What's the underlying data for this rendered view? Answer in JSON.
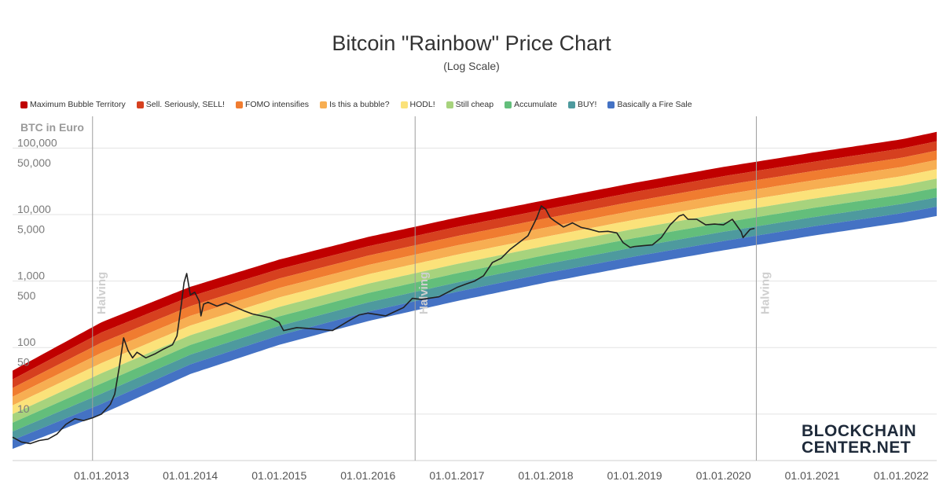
{
  "title": "Bitcoin \"Rainbow\" Price Chart",
  "subtitle": "(Log Scale)",
  "legend": [
    {
      "label": "Maximum Bubble Territory",
      "color": "#c00000"
    },
    {
      "label": "Sell. Seriously, SELL!",
      "color": "#d6401f"
    },
    {
      "label": "FOMO intensifies",
      "color": "#f07c30"
    },
    {
      "label": "Is this a bubble?",
      "color": "#f7ae52"
    },
    {
      "label": "HODL!",
      "color": "#fbe27a"
    },
    {
      "label": "Still cheap",
      "color": "#a7d37d"
    },
    {
      "label": "Accumulate",
      "color": "#63be7b"
    },
    {
      "label": "BUY!",
      "color": "#4e9a9e"
    },
    {
      "label": "Basically a Fire Sale",
      "color": "#4472c4"
    }
  ],
  "logo": {
    "line1": "BLOCKCHAIN",
    "line2": "CENTER.NET"
  },
  "chart_data": {
    "type": "area",
    "title": "Bitcoin \"Rainbow\" Price Chart",
    "subtitle": "(Log Scale)",
    "ylabel": "BTC in Euro",
    "xlabel": "",
    "yscale": "log",
    "ylim": [
      2,
      300000
    ],
    "xlim": [
      2012.0,
      2022.4
    ],
    "y_ticks": [
      {
        "label": "100,000",
        "value": 100000
      },
      {
        "label": "50,000",
        "value": 50000
      },
      {
        "label": "10,000",
        "value": 10000
      },
      {
        "label": "5,000",
        "value": 5000
      },
      {
        "label": "1,000",
        "value": 1000
      },
      {
        "label": "500",
        "value": 500
      },
      {
        "label": "100",
        "value": 100
      },
      {
        "label": "50",
        "value": 50
      },
      {
        "label": "10",
        "value": 10
      }
    ],
    "gridlines": [
      100000,
      10000,
      1000,
      100,
      10
    ],
    "x_ticks": [
      {
        "label": "01.01.2013",
        "value": 2013
      },
      {
        "label": "01.01.2014",
        "value": 2014
      },
      {
        "label": "01.01.2015",
        "value": 2015
      },
      {
        "label": "01.01.2016",
        "value": 2016
      },
      {
        "label": "01.01.2017",
        "value": 2017
      },
      {
        "label": "01.01.2018",
        "value": 2018
      },
      {
        "label": "01.01.2019",
        "value": 2019
      },
      {
        "label": "01.01.2020",
        "value": 2020
      },
      {
        "label": "01.01.2021",
        "value": 2021
      },
      {
        "label": "01.01.2022",
        "value": 2022
      }
    ],
    "halvings": [
      {
        "label": "Halving",
        "date": 2012.9
      },
      {
        "label": "Halving",
        "date": 2016.53
      },
      {
        "label": "Halving",
        "date": 2020.37
      }
    ],
    "bands": {
      "names": [
        "Maximum Bubble Territory",
        "Sell. Seriously, SELL!",
        "FOMO intensifies",
        "Is this a bubble?",
        "HODL!",
        "Still cheap",
        "Accumulate",
        "BUY!",
        "Basically a Fire Sale"
      ],
      "colors": [
        "#c00000",
        "#d6401f",
        "#f07c30",
        "#f7ae52",
        "#fbe27a",
        "#a7d37d",
        "#63be7b",
        "#4e9a9e",
        "#4472c4"
      ],
      "x": [
        2012.0,
        2013.0,
        2014.0,
        2015.0,
        2016.0,
        2017.0,
        2018.0,
        2019.0,
        2020.0,
        2021.0,
        2022.0,
        2022.4
      ],
      "upper": [
        45,
        240,
        820,
        2100,
        4600,
        9000,
        16500,
        30000,
        52000,
        85000,
        135000,
        175000
      ],
      "lower": [
        3,
        10,
        40,
        110,
        250,
        500,
        950,
        1700,
        2900,
        4800,
        7600,
        9500
      ]
    },
    "series": [
      {
        "name": "BTC price",
        "x": [
          2012.0,
          2012.1,
          2012.2,
          2012.3,
          2012.4,
          2012.5,
          2012.6,
          2012.7,
          2012.8,
          2012.9,
          2013.0,
          2013.1,
          2013.15,
          2013.2,
          2013.25,
          2013.3,
          2013.35,
          2013.4,
          2013.5,
          2013.6,
          2013.7,
          2013.8,
          2013.85,
          2013.9,
          2013.93,
          2013.96,
          2014.0,
          2014.05,
          2014.1,
          2014.12,
          2014.15,
          2014.2,
          2014.3,
          2014.4,
          2014.5,
          2014.6,
          2014.7,
          2014.8,
          2014.9,
          2015.0,
          2015.05,
          2015.2,
          2015.4,
          2015.6,
          2015.8,
          2015.9,
          2016.0,
          2016.2,
          2016.4,
          2016.5,
          2016.6,
          2016.8,
          2017.0,
          2017.1,
          2017.2,
          2017.3,
          2017.4,
          2017.5,
          2017.6,
          2017.7,
          2017.8,
          2017.9,
          2017.95,
          2018.0,
          2018.05,
          2018.1,
          2018.2,
          2018.3,
          2018.4,
          2018.5,
          2018.6,
          2018.7,
          2018.8,
          2018.87,
          2018.95,
          2019.0,
          2019.1,
          2019.2,
          2019.3,
          2019.4,
          2019.5,
          2019.55,
          2019.6,
          2019.7,
          2019.8,
          2019.9,
          2020.0,
          2020.1,
          2020.2,
          2020.22,
          2020.3,
          2020.35
        ],
        "values": [
          4.5,
          3.8,
          3.6,
          4.0,
          4.2,
          5.0,
          7.0,
          8.5,
          8.0,
          8.8,
          10.0,
          14,
          20,
          50,
          140,
          90,
          70,
          85,
          70,
          80,
          95,
          110,
          150,
          450,
          950,
          1300,
          620,
          680,
          500,
          300,
          450,
          480,
          420,
          470,
          410,
          360,
          320,
          300,
          280,
          240,
          180,
          200,
          190,
          180,
          260,
          310,
          330,
          300,
          400,
          550,
          530,
          580,
          800,
          900,
          1000,
          1200,
          1900,
          2200,
          3000,
          3800,
          4800,
          9000,
          13500,
          12000,
          9000,
          8000,
          6500,
          7500,
          6400,
          6000,
          5500,
          5600,
          5300,
          3800,
          3200,
          3300,
          3400,
          3500,
          4500,
          7000,
          9500,
          10000,
          8500,
          8500,
          7000,
          7200,
          7000,
          8500,
          5500,
          4500,
          6000,
          6200
        ]
      }
    ]
  }
}
